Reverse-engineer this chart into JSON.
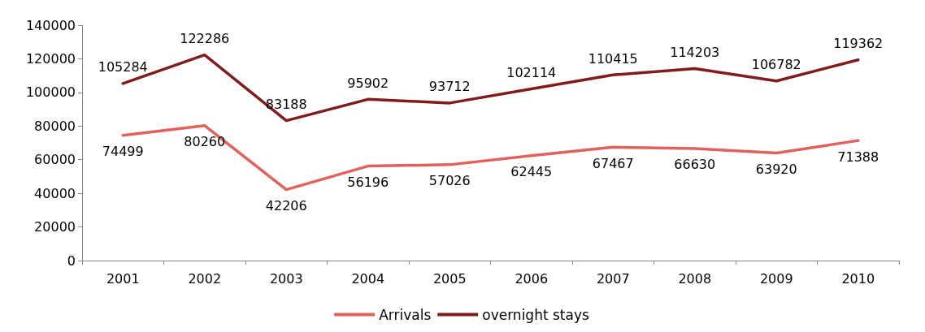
{
  "chart_data": {
    "type": "line",
    "categories": [
      "2001",
      "2002",
      "2003",
      "2004",
      "2005",
      "2006",
      "2007",
      "2008",
      "2009",
      "2010"
    ],
    "series": [
      {
        "name": "Arrivals",
        "color": "#e0625c",
        "values": [
          74499,
          80260,
          42206,
          56196,
          57026,
          62445,
          67467,
          66630,
          63920,
          71388
        ]
      },
      {
        "name": "overnight stays",
        "color": "#7f1d1d",
        "values": [
          105284,
          122286,
          83188,
          95902,
          93712,
          102114,
          110415,
          114203,
          106782,
          119362
        ]
      }
    ],
    "ylim": [
      0,
      140000
    ],
    "yticks": [
      0,
      20000,
      40000,
      60000,
      80000,
      100000,
      120000,
      140000
    ],
    "grid": false,
    "legend": "bottom",
    "data_labels": true,
    "marker": "none",
    "line_style": "solid"
  }
}
